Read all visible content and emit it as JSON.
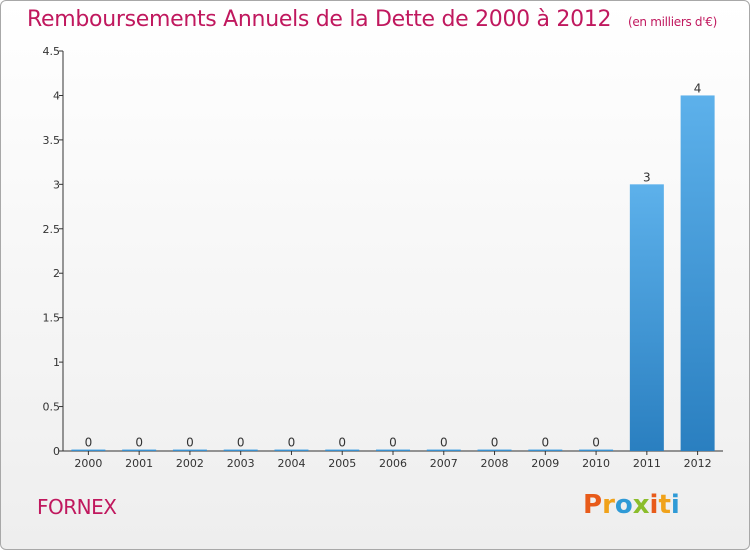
{
  "header": {
    "title": "Remboursements Annuels de la Dette de 2000 à 2012",
    "subtitle": "(en milliers d'€)"
  },
  "footer": {
    "commune": "FORNEX",
    "brand": [
      "P",
      "r",
      "o",
      "x",
      "i",
      "t",
      "i"
    ],
    "brand_colors": [
      "#e85b1a",
      "#f0a21a",
      "#2f9ad6",
      "#8bbd2b",
      "#e85b1a",
      "#f0a21a",
      "#2f9ad6"
    ]
  },
  "colors": {
    "bar_light": "#5db1eb",
    "bar_dark": "#2a7fc0",
    "axis": "#333333"
  },
  "chart_data": {
    "type": "bar",
    "title": "Remboursements Annuels de la Dette de 2000 à 2012",
    "subtitle": "(en milliers d'€)",
    "categories": [
      "2000",
      "2001",
      "2002",
      "2003",
      "2004",
      "2005",
      "2006",
      "2007",
      "2008",
      "2009",
      "2010",
      "2011",
      "2012"
    ],
    "values": [
      0,
      0,
      0,
      0,
      0,
      0,
      0,
      0,
      0,
      0,
      0,
      3,
      4
    ],
    "value_labels": [
      "0",
      "0",
      "0",
      "0",
      "0",
      "0",
      "0",
      "0",
      "0",
      "0",
      "0",
      "3",
      "4"
    ],
    "y_ticks": [
      0,
      0.5,
      1,
      1.5,
      2,
      2.5,
      3,
      3.5,
      4,
      4.5
    ],
    "y_tick_labels": [
      "0",
      "0.5",
      "1",
      "1.5",
      "2",
      "2.5",
      "3",
      "3.5",
      "4",
      "4.5"
    ],
    "ylim": [
      0,
      4.5
    ],
    "grid": false,
    "xlabel": "",
    "ylabel": ""
  }
}
